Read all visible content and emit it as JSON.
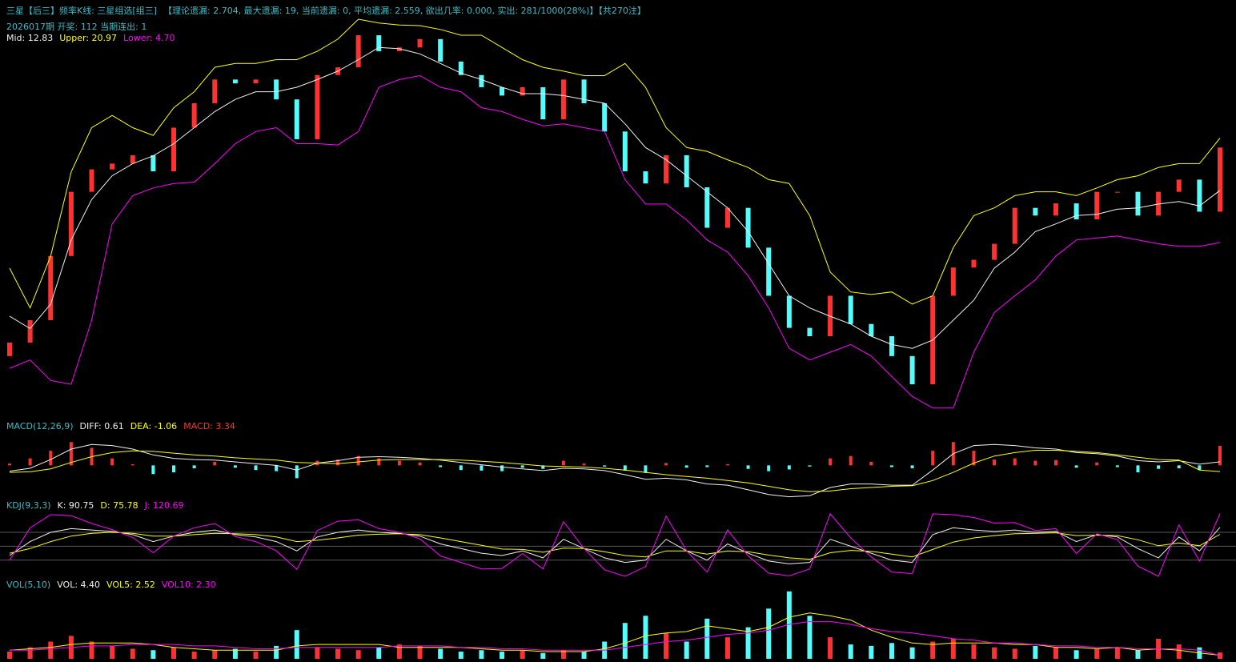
{
  "header": {
    "title": "三星【后三】频率K线: 三星组选[组三]",
    "stats": "【理论遗漏: 2.704, 最大遗漏: 19, 当前遗漏: 0, 平均遗漏: 2.559, 欲出几率: 0.000, 实出: 281/1000(28%)】【共270注】",
    "issue": "2026017期 开奖: 112 当期连出: 1"
  },
  "chart_data": [
    {
      "type": "candlestick",
      "up_color": "#ff3232",
      "down_color": "#54fcfc",
      "ylim": [
        -23,
        40
      ],
      "open": [
        -13.0,
        -10.9,
        -7.4,
        2.6,
        12.6,
        16.1,
        17.0,
        18.3,
        15.8,
        22.6,
        26.4,
        30.1,
        29.5,
        30.1,
        27.0,
        20.8,
        30.8,
        32.0,
        37.0,
        34.5,
        35.1,
        36.4,
        32.9,
        30.8,
        28.9,
        27.6,
        28.9,
        23.9,
        30.1,
        26.4,
        22.0,
        15.8,
        13.9,
        18.3,
        13.3,
        7.0,
        10.1,
        3.9,
        -3.6,
        -8.6,
        -9.9,
        -3.6,
        -8.0,
        -9.9,
        -13.0,
        -17.4,
        -3.6,
        0.8,
        2.0,
        4.5,
        10.1,
        8.9,
        10.8,
        8.3,
        12.6,
        12.6,
        8.9,
        12.6,
        14.5,
        9.5
      ],
      "close": [
        -10.9,
        -7.4,
        2.6,
        12.6,
        16.1,
        17.0,
        18.3,
        15.8,
        22.6,
        26.4,
        30.1,
        29.5,
        30.1,
        27.0,
        20.8,
        30.8,
        32.0,
        37.0,
        34.5,
        35.1,
        36.4,
        32.9,
        30.8,
        28.9,
        27.6,
        28.9,
        23.9,
        30.1,
        26.4,
        22.0,
        15.8,
        13.9,
        18.3,
        13.3,
        7.0,
        10.1,
        3.9,
        -3.6,
        -8.6,
        -9.9,
        -3.6,
        -8.0,
        -9.9,
        -13.0,
        -17.4,
        -3.6,
        0.8,
        2.0,
        4.5,
        10.1,
        8.9,
        10.8,
        8.3,
        12.6,
        12.6,
        8.9,
        12.6,
        14.5,
        9.5,
        19.5
      ],
      "series": [
        {
          "label": "Mid: 12.83",
          "color": "#f0f0f0",
          "values": [
            -6.8,
            -8.7,
            -4.9,
            5.1,
            11.4,
            15.1,
            17.0,
            18.2,
            20.1,
            22.6,
            25.1,
            27.0,
            28.2,
            28.2,
            28.9,
            30.1,
            31.4,
            33.2,
            35.1,
            34.9,
            34.1,
            32.6,
            31.1,
            30.1,
            28.9,
            27.9,
            27.9,
            27.6,
            27.0,
            26.4,
            23.2,
            19.5,
            17.6,
            15.1,
            12.6,
            10.1,
            6.4,
            1.4,
            -3.6,
            -5.5,
            -6.8,
            -8.0,
            -9.9,
            -11.2,
            -11.8,
            -10.5,
            -7.4,
            -4.3,
            0.7,
            3.2,
            6.4,
            7.6,
            8.9,
            9.1,
            9.9,
            10.1,
            10.7,
            11.1,
            10.4,
            12.83
          ]
        },
        {
          "label": "Upper: 20.97",
          "color": "#ffff00",
          "values": [
            0.7,
            -5.5,
            2.6,
            15.7,
            22.6,
            24.5,
            22.6,
            21.4,
            25.7,
            28.2,
            32.0,
            32.6,
            32.6,
            33.2,
            33.2,
            34.5,
            36.4,
            39.5,
            38.9,
            38.6,
            38.5,
            37.9,
            37.0,
            37.0,
            35.1,
            33.2,
            32.0,
            31.4,
            30.7,
            30.7,
            32.6,
            28.9,
            22.6,
            19.5,
            18.9,
            17.6,
            16.4,
            14.5,
            13.9,
            8.9,
            0.1,
            -3.0,
            -3.4,
            -3.0,
            -4.9,
            -3.6,
            3.9,
            8.9,
            10.1,
            12.0,
            12.6,
            12.6,
            12.0,
            13.2,
            14.5,
            15.1,
            16.4,
            17.0,
            17.0,
            20.97
          ]
        },
        {
          "label": "Lower: 4.70",
          "color": "#ff00ff",
          "values": [
            -14.9,
            -13.6,
            -16.8,
            -17.4,
            -7.4,
            7.6,
            12.0,
            13.2,
            13.9,
            14.1,
            17.0,
            20.1,
            22.0,
            22.6,
            20.1,
            20.1,
            19.9,
            22.0,
            28.9,
            30.1,
            30.7,
            28.9,
            28.2,
            25.7,
            25.1,
            23.9,
            22.9,
            23.2,
            22.6,
            22.0,
            14.5,
            10.7,
            10.7,
            8.2,
            5.1,
            3.2,
            -0.5,
            -5.5,
            -11.8,
            -13.6,
            -12.4,
            -11.2,
            -13.0,
            -16.2,
            -19.3,
            -21.1,
            -21.1,
            -12.4,
            -6.2,
            -3.6,
            -1.1,
            2.6,
            5.1,
            5.4,
            5.7,
            5.1,
            4.5,
            4.1,
            4.1,
            4.7
          ]
        }
      ]
    },
    {
      "type": "combo",
      "title": "MACD(12,26,9)",
      "ylim": [
        -6,
        5
      ],
      "series": [
        {
          "label": "DIFF: 0.61",
          "kind": "line",
          "color": "#f0f0f0",
          "values": [
            -1.0,
            -0.5,
            1.0,
            2.8,
            3.6,
            3.4,
            2.8,
            1.8,
            1.2,
            1.0,
            0.9,
            0.6,
            0.3,
            0,
            -0.8,
            0.4,
            0.8,
            1.4,
            1.5,
            1.4,
            1.2,
            0.9,
            0.5,
            0.1,
            -0.3,
            -0.6,
            -0.9,
            -0.5,
            -0.6,
            -0.9,
            -1.6,
            -2.4,
            -2.2,
            -2.5,
            -3.2,
            -3.4,
            -4.2,
            -5.0,
            -5.4,
            -5.2,
            -3.8,
            -3.2,
            -3.2,
            -3.4,
            -3.4,
            -0.8,
            2.0,
            3.4,
            3.6,
            3.4,
            3.0,
            2.8,
            2.2,
            2.0,
            1.6,
            0.8,
            0.6,
            0.8,
            0.2,
            0.61
          ]
        },
        {
          "label": "DEA: -1.06",
          "kind": "line",
          "color": "#ffff00",
          "values": [
            -1.2,
            -1.1,
            -0.6,
            0.5,
            1.5,
            2.2,
            2.5,
            2.4,
            2.1,
            1.8,
            1.6,
            1.3,
            1.1,
            0.9,
            0.5,
            0.4,
            0.3,
            0.6,
            0.9,
            1.0,
            1.0,
            1.0,
            0.9,
            0.7,
            0.5,
            0.2,
            -0.1,
            -0.2,
            -0.3,
            -0.5,
            -0.8,
            -1.2,
            -1.6,
            -1.9,
            -2.2,
            -2.6,
            -3.0,
            -3.6,
            -4.2,
            -4.5,
            -4.4,
            -4.0,
            -3.8,
            -3.6,
            -3.5,
            -2.6,
            -1.2,
            0.4,
            1.6,
            2.2,
            2.6,
            2.6,
            2.4,
            2.2,
            1.8,
            1.4,
            1.0,
            0.9,
            -0.8,
            -1.06
          ]
        },
        {
          "label": "MACD: 3.34",
          "kind": "bar",
          "color": "#ff3232",
          "negative_color": "#54fcfc",
          "values": [
            0.3,
            1.2,
            2.5,
            4.0,
            3.0,
            1.2,
            0.2,
            -1.5,
            -1.2,
            -0.5,
            0.6,
            -0.4,
            -0.8,
            -1.0,
            -2.2,
            0.8,
            1.0,
            1.6,
            1.2,
            0.8,
            0.5,
            -0.3,
            -0.8,
            -0.9,
            -1.0,
            -0.4,
            -0.6,
            0.8,
            0.3,
            -0.2,
            -0.9,
            -1.3,
            0.4,
            -0.4,
            -0.3,
            0.2,
            -0.6,
            -1.0,
            -0.7,
            -0.2,
            1.2,
            1.6,
            0.6,
            -0.3,
            -0.5,
            2.5,
            4.0,
            2.5,
            1.0,
            1.2,
            0.8,
            0.9,
            -0.4,
            0.5,
            -0.3,
            -1.2,
            -0.6,
            -0.5,
            -0.8,
            3.34
          ]
        }
      ]
    },
    {
      "type": "line",
      "title": "KDJ(9,3,3)",
      "ylim": [
        -15,
        125
      ],
      "yticks": [
        20,
        50,
        80
      ],
      "grid": true,
      "grid_color": "#5a5a5a",
      "series": [
        {
          "label": "K: 90.75",
          "color": "#f0f0f0",
          "values": [
            30,
            60,
            80,
            88,
            85,
            82,
            75,
            60,
            72,
            80,
            85,
            75,
            70,
            60,
            40,
            70,
            80,
            85,
            80,
            78,
            72,
            55,
            45,
            35,
            30,
            40,
            25,
            65,
            45,
            25,
            15,
            20,
            65,
            40,
            20,
            55,
            35,
            18,
            12,
            15,
            65,
            50,
            35,
            20,
            15,
            75,
            90,
            85,
            82,
            85,
            80,
            82,
            60,
            75,
            70,
            45,
            25,
            70,
            40,
            90.75
          ]
        },
        {
          "label": "D: 75.78",
          "color": "#ffff00",
          "values": [
            35,
            45,
            60,
            72,
            78,
            80,
            78,
            72,
            72,
            75,
            78,
            77,
            75,
            70,
            60,
            63,
            68,
            74,
            76,
            77,
            75,
            68,
            60,
            52,
            44,
            43,
            37,
            46,
            45,
            38,
            30,
            27,
            40,
            40,
            33,
            40,
            38,
            31,
            25,
            22,
            36,
            41,
            39,
            33,
            27,
            43,
            59,
            68,
            73,
            77,
            78,
            79,
            73,
            74,
            73,
            64,
            51,
            57,
            51,
            75.78
          ]
        },
        {
          "label": "J: 120.69",
          "color": "#ff00ff",
          "values": [
            20,
            90,
            118,
            116,
            99,
            86,
            69,
            36,
            72,
            90,
            99,
            71,
            60,
            40,
            0,
            84,
            104,
            107,
            88,
            80,
            66,
            29,
            15,
            1,
            2,
            34,
            1,
            103,
            45,
            -1,
            -15,
            6,
            115,
            40,
            -6,
            85,
            29,
            -8,
            -14,
            1,
            120,
            68,
            27,
            -6,
            -9,
            120,
            118,
            112,
            100,
            101,
            84,
            88,
            34,
            77,
            64,
            7,
            -15,
            96,
            18,
            120.69
          ]
        }
      ]
    },
    {
      "type": "combo",
      "title": "VOL(5,10)",
      "ylim": [
        0,
        48
      ],
      "series": [
        {
          "label": "VOL: 4.40",
          "kind": "bar",
          "color_by_candle": true,
          "values": [
            5,
            8,
            12,
            16,
            12,
            9,
            7,
            6,
            8,
            5,
            6,
            7,
            5,
            9,
            20,
            8,
            7,
            6,
            8,
            10,
            9,
            7,
            5,
            6,
            5,
            6,
            4,
            6,
            5,
            12,
            25,
            30,
            18,
            12,
            28,
            15,
            22,
            35,
            47,
            30,
            15,
            10,
            9,
            11,
            8,
            12,
            14,
            10,
            8,
            7,
            9,
            8,
            6,
            7,
            8,
            6,
            14,
            10,
            8,
            4.4
          ]
        },
        {
          "label": "VOL5: 2.52",
          "kind": "line",
          "color": "#ffff00",
          "values": [
            6,
            7,
            8,
            10,
            11,
            11,
            11,
            10,
            8,
            7,
            6,
            6,
            6,
            6,
            9,
            10,
            10,
            10,
            10,
            8,
            8,
            8,
            8,
            7,
            6,
            6,
            5,
            5,
            5,
            7,
            11,
            16,
            18,
            19,
            23,
            21,
            19,
            22,
            29,
            32,
            30,
            27,
            20,
            15,
            11,
            10,
            11,
            11,
            11,
            10,
            10,
            8,
            8,
            7,
            8,
            6,
            7,
            6,
            4,
            2.52
          ]
        },
        {
          "label": "VOL10: 2.30",
          "kind": "line",
          "color": "#ff00ff",
          "values": [
            6,
            6,
            7,
            8,
            9,
            9,
            10,
            10,
            10,
            9,
            9,
            8,
            7,
            7,
            8,
            8,
            8,
            8,
            8,
            9,
            9,
            9,
            8,
            8,
            7,
            7,
            6,
            6,
            6,
            6,
            8,
            10,
            12,
            13,
            15,
            17,
            18,
            20,
            24,
            26,
            26,
            24,
            21,
            19,
            18,
            16,
            14,
            13,
            11,
            11,
            10,
            9,
            9,
            8,
            8,
            7,
            7,
            7,
            6,
            2.3
          ]
        }
      ]
    }
  ]
}
